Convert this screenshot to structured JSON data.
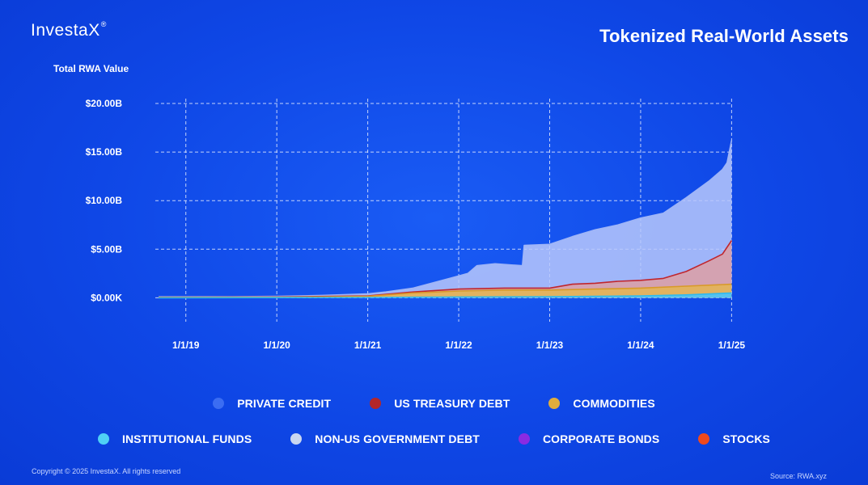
{
  "brand": {
    "name": "InvestaX",
    "mark": "®"
  },
  "title": "Tokenized Real-World Assets",
  "footer": {
    "copyright": "Copyright © 2025 InvestaX. All rights reserved",
    "source": "Source: RWA.xyz"
  },
  "colors": {
    "background": "#0f47e6",
    "private_credit": "#b9c8fb",
    "us_treasury_debt": "#d9a0a8",
    "us_treasury_line": "#c0262d",
    "commodities": "#e4b552",
    "institutional_funds": "#4fc3f7",
    "non_us_government_debt": "#c7d4f5",
    "corporate_bonds": "#8a2be2",
    "stocks": "#f0491d"
  },
  "chart_data": {
    "type": "area",
    "ylabel": "Total RWA Value",
    "yticks": [
      "$0.00K",
      "$5.00B",
      "$10.00B",
      "$15.00B",
      "$20.00B"
    ],
    "ytick_values": [
      0,
      5,
      10,
      15,
      20
    ],
    "xticks": [
      "1/1/19",
      "1/1/20",
      "1/1/21",
      "1/1/22",
      "1/1/23",
      "1/1/24",
      "1/1/25"
    ],
    "xtick_values": [
      2019,
      2020,
      2021,
      2022,
      2023,
      2024,
      2025
    ],
    "xlim": [
      2018.7,
      2025.05
    ],
    "ylim": [
      -0.3,
      20.5
    ],
    "grid": true,
    "legend_position": "bottom",
    "legend": [
      {
        "name": "PRIVATE CREDIT",
        "color": "#3b6df2"
      },
      {
        "name": "US TREASURY DEBT",
        "color": "#b3262a"
      },
      {
        "name": "COMMODITIES",
        "color": "#e0ad3c"
      },
      {
        "name": "INSTITUTIONAL FUNDS",
        "color": "#4fd0f5"
      },
      {
        "name": "NON-US GOVERNMENT DEBT",
        "color": "#c9d6f0"
      },
      {
        "name": "CORPORATE BONDS",
        "color": "#8a2be2"
      },
      {
        "name": "STOCKS",
        "color": "#f0491d"
      }
    ],
    "series": [
      {
        "name": "PRIVATE CREDIT",
        "x": [
          2018.7,
          2019.5,
          2020.0,
          2020.5,
          2021.0,
          2021.2,
          2021.5,
          2021.7,
          2021.9,
          2022.1,
          2022.2,
          2022.4,
          2022.55,
          2022.7,
          2022.72,
          2023.0,
          2023.25,
          2023.5,
          2023.75,
          2024.0,
          2024.25,
          2024.5,
          2024.75,
          2024.9,
          2024.95,
          2025.0
        ],
        "y": [
          0.1,
          0.12,
          0.15,
          0.25,
          0.4,
          0.6,
          1.0,
          1.5,
          2.0,
          2.5,
          3.3,
          3.5,
          3.4,
          3.3,
          5.4,
          5.5,
          6.3,
          7.0,
          7.5,
          8.2,
          8.7,
          10.3,
          12.0,
          13.2,
          13.9,
          16.2
        ]
      },
      {
        "name": "US TREASURY DEBT",
        "x": [
          2018.7,
          2020.0,
          2021.0,
          2021.5,
          2022.0,
          2022.5,
          2023.0,
          2023.25,
          2023.5,
          2023.75,
          2024.0,
          2024.25,
          2024.5,
          2024.75,
          2024.9,
          2025.0
        ],
        "y": [
          0.05,
          0.08,
          0.2,
          0.6,
          0.9,
          1.0,
          1.0,
          1.4,
          1.5,
          1.7,
          1.8,
          2.0,
          2.7,
          3.8,
          4.5,
          5.9
        ]
      },
      {
        "name": "COMMODITIES",
        "x": [
          2018.7,
          2020.0,
          2021.0,
          2021.5,
          2022.0,
          2022.5,
          2023.0,
          2023.5,
          2024.0,
          2024.5,
          2025.0
        ],
        "y": [
          0.03,
          0.05,
          0.15,
          0.5,
          0.7,
          0.8,
          0.8,
          0.9,
          1.0,
          1.2,
          1.4
        ]
      },
      {
        "name": "INSTITUTIONAL FUNDS",
        "x": [
          2018.7,
          2021.0,
          2022.0,
          2023.0,
          2024.0,
          2024.5,
          2025.0
        ],
        "y": [
          0.0,
          0.03,
          0.08,
          0.12,
          0.2,
          0.3,
          0.5
        ]
      }
    ]
  }
}
